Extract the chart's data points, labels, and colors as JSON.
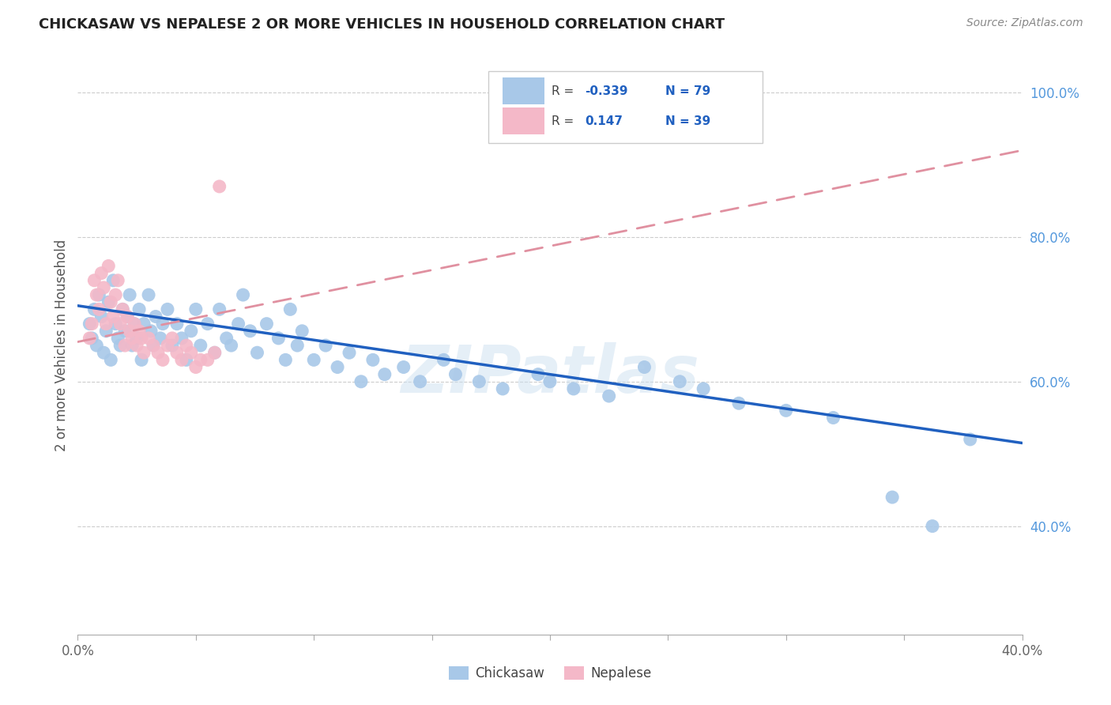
{
  "title": "CHICKASAW VS NEPALESE 2 OR MORE VEHICLES IN HOUSEHOLD CORRELATION CHART",
  "source": "Source: ZipAtlas.com",
  "ylabel": "2 or more Vehicles in Household",
  "xlim": [
    0.0,
    0.4
  ],
  "ylim": [
    0.25,
    1.05
  ],
  "y_ticks": [
    0.4,
    0.6,
    0.8,
    1.0
  ],
  "y_tick_labels": [
    "40.0%",
    "60.0%",
    "80.0%",
    "100.0%"
  ],
  "x_ticks": [
    0.0,
    0.05,
    0.1,
    0.15,
    0.2,
    0.25,
    0.3,
    0.35,
    0.4
  ],
  "x_tick_labels": [
    "0.0%",
    "",
    "",
    "",
    "",
    "",
    "",
    "",
    "40.0%"
  ],
  "chickasaw_R": -0.339,
  "chickasaw_N": 79,
  "nepalese_R": 0.147,
  "nepalese_N": 39,
  "chickasaw_color": "#a8c8e8",
  "nepalese_color": "#f4b8c8",
  "chickasaw_line_color": "#2060c0",
  "nepalese_line_color": "#e090a0",
  "watermark": "ZIPatlas",
  "chickasaw_x": [
    0.005,
    0.006,
    0.007,
    0.008,
    0.009,
    0.01,
    0.011,
    0.012,
    0.013,
    0.014,
    0.015,
    0.016,
    0.017,
    0.018,
    0.019,
    0.02,
    0.021,
    0.022,
    0.023,
    0.024,
    0.025,
    0.026,
    0.027,
    0.028,
    0.03,
    0.031,
    0.032,
    0.033,
    0.035,
    0.036,
    0.038,
    0.04,
    0.042,
    0.044,
    0.046,
    0.048,
    0.05,
    0.052,
    0.055,
    0.058,
    0.06,
    0.063,
    0.065,
    0.068,
    0.07,
    0.073,
    0.076,
    0.08,
    0.085,
    0.088,
    0.09,
    0.093,
    0.095,
    0.1,
    0.105,
    0.11,
    0.115,
    0.12,
    0.125,
    0.13,
    0.138,
    0.145,
    0.155,
    0.16,
    0.17,
    0.18,
    0.195,
    0.2,
    0.21,
    0.225,
    0.24,
    0.255,
    0.265,
    0.28,
    0.3,
    0.32,
    0.345,
    0.362,
    0.378
  ],
  "chickasaw_y": [
    0.68,
    0.66,
    0.7,
    0.65,
    0.72,
    0.69,
    0.64,
    0.67,
    0.71,
    0.63,
    0.74,
    0.68,
    0.66,
    0.65,
    0.7,
    0.67,
    0.69,
    0.72,
    0.65,
    0.68,
    0.66,
    0.7,
    0.63,
    0.68,
    0.72,
    0.67,
    0.65,
    0.69,
    0.66,
    0.68,
    0.7,
    0.65,
    0.68,
    0.66,
    0.63,
    0.67,
    0.7,
    0.65,
    0.68,
    0.64,
    0.7,
    0.66,
    0.65,
    0.68,
    0.72,
    0.67,
    0.64,
    0.68,
    0.66,
    0.63,
    0.7,
    0.65,
    0.67,
    0.63,
    0.65,
    0.62,
    0.64,
    0.6,
    0.63,
    0.61,
    0.62,
    0.6,
    0.63,
    0.61,
    0.6,
    0.59,
    0.61,
    0.6,
    0.59,
    0.58,
    0.62,
    0.6,
    0.59,
    0.57,
    0.56,
    0.55,
    0.44,
    0.4,
    0.52
  ],
  "nepalese_x": [
    0.005,
    0.006,
    0.007,
    0.008,
    0.009,
    0.01,
    0.011,
    0.012,
    0.013,
    0.014,
    0.015,
    0.016,
    0.017,
    0.018,
    0.019,
    0.02,
    0.021,
    0.022,
    0.023,
    0.024,
    0.025,
    0.026,
    0.027,
    0.028,
    0.03,
    0.032,
    0.034,
    0.036,
    0.038,
    0.04,
    0.042,
    0.044,
    0.046,
    0.048,
    0.05,
    0.052,
    0.055,
    0.058,
    0.06
  ],
  "nepalese_y": [
    0.66,
    0.68,
    0.74,
    0.72,
    0.7,
    0.75,
    0.73,
    0.68,
    0.76,
    0.71,
    0.69,
    0.72,
    0.74,
    0.68,
    0.7,
    0.65,
    0.69,
    0.67,
    0.66,
    0.68,
    0.65,
    0.67,
    0.66,
    0.64,
    0.66,
    0.65,
    0.64,
    0.63,
    0.65,
    0.66,
    0.64,
    0.63,
    0.65,
    0.64,
    0.62,
    0.63,
    0.63,
    0.64,
    0.87
  ],
  "chick_trendline_x": [
    0.0,
    0.4
  ],
  "chick_trendline_y": [
    0.705,
    0.515
  ],
  "nep_trendline_x": [
    0.0,
    0.4
  ],
  "nep_trendline_y": [
    0.655,
    0.92
  ]
}
